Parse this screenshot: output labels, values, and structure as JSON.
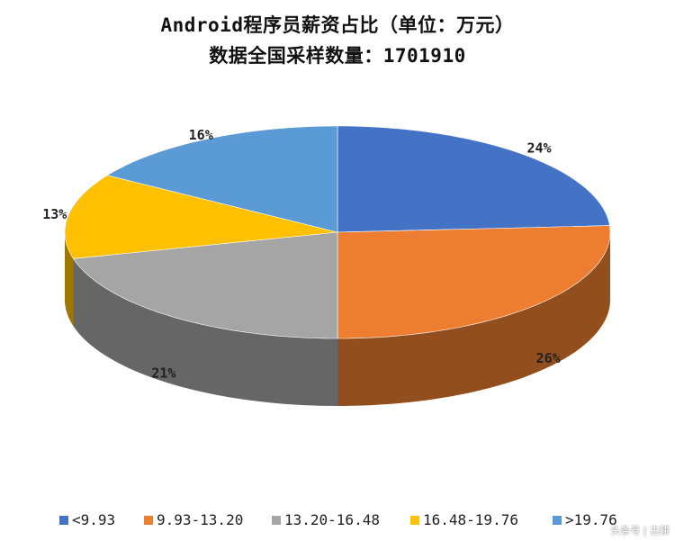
{
  "chart_data": {
    "type": "pie",
    "title": "Android程序员薪资占比（单位：万元）",
    "subtitle": "数据全国采样数量：1701910",
    "categories": [
      "<9.93",
      "9.93-13.20",
      "13.20-16.48",
      "16.48-19.76",
      ">19.76"
    ],
    "values": [
      24,
      26,
      21,
      13,
      16
    ],
    "labels": [
      "24%",
      "26%",
      "21%",
      "13%",
      "16%"
    ],
    "colors": [
      "#4472C4",
      "#ED7D31",
      "#A5A5A5",
      "#FFC000",
      "#5B9BD5"
    ],
    "legend": "bottom",
    "style": "3d"
  },
  "watermark": "头条号 | 古耕"
}
